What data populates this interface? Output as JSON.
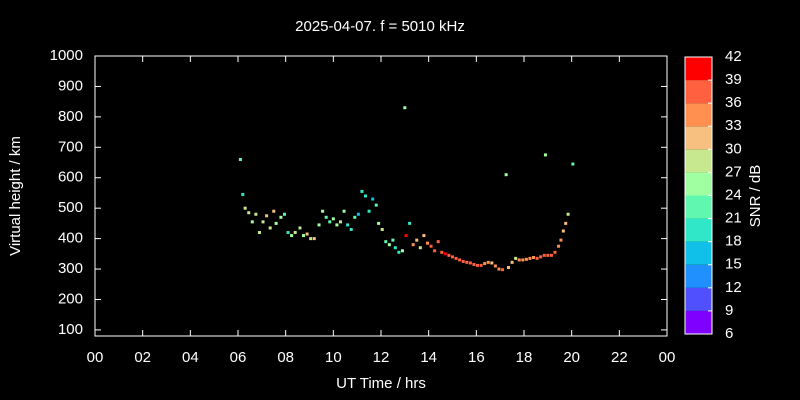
{
  "chart_data": {
    "type": "scatter",
    "title": "2025-04-07. f = 5010 kHz",
    "x_label": "UT Time / hrs",
    "y_label": "Virtual height / km",
    "xlim": [
      0,
      24
    ],
    "xticks": [
      {
        "value": 0,
        "label": "00"
      },
      {
        "value": 2,
        "label": "02"
      },
      {
        "value": 4,
        "label": "04"
      },
      {
        "value": 6,
        "label": "06"
      },
      {
        "value": 8,
        "label": "08"
      },
      10,
      12,
      14,
      16,
      18,
      20,
      22,
      {
        "value": 24,
        "label": "00"
      }
    ],
    "ylim": [
      80,
      1000
    ],
    "yticks": [
      100,
      200,
      300,
      400,
      500,
      600,
      700,
      800,
      900,
      1000
    ],
    "colorbar": {
      "label": "SNR / dB",
      "lim": [
        6,
        42
      ],
      "ticks": [
        6,
        9,
        12,
        15,
        18,
        21,
        24,
        27,
        30,
        33,
        36,
        39,
        42
      ],
      "colors": [
        "#8000ff",
        "#5050ff",
        "#2090ff",
        "#10c0e8",
        "#30e8c8",
        "#60f8b0",
        "#a0ffa0",
        "#c8e890",
        "#f8c080",
        "#ff9050",
        "#ff6040",
        "#ff0000"
      ]
    },
    "series": [
      {
        "x": [
          6.1,
          6.2,
          6.3,
          6.45,
          6.6,
          6.75,
          6.9,
          7.05,
          7.2,
          7.35,
          7.5,
          7.6,
          7.8,
          7.95,
          8.1,
          8.25,
          8.4,
          8.6,
          8.75,
          8.9,
          9.05,
          9.2,
          9.4,
          9.55,
          9.7,
          9.85,
          10.0,
          10.15,
          10.3,
          10.45,
          10.6,
          10.75,
          10.9,
          11.05,
          11.2,
          11.35,
          11.5,
          11.65,
          11.8,
          11.9,
          12.05,
          12.2,
          12.35,
          12.5,
          12.6,
          12.75,
          12.9,
          13.0,
          13.05,
          13.2,
          13.35,
          13.5,
          13.65,
          13.8,
          13.95,
          14.1,
          14.25,
          14.4,
          14.55,
          14.7,
          14.85,
          15.0,
          15.15,
          15.3,
          15.45,
          15.6,
          15.75,
          15.9,
          16.05,
          16.2,
          16.35,
          16.5,
          16.65,
          16.8,
          16.95,
          17.1,
          17.25,
          17.35,
          17.5,
          17.65,
          17.8,
          17.95,
          18.1,
          18.25,
          18.4,
          18.55,
          18.7,
          18.85,
          18.9,
          19.0,
          19.15,
          19.3,
          19.45,
          19.55,
          19.65,
          19.75,
          19.85,
          20.05
        ],
        "y": [
          660,
          545,
          500,
          485,
          455,
          480,
          420,
          455,
          475,
          435,
          490,
          450,
          470,
          480,
          420,
          410,
          420,
          435,
          410,
          415,
          400,
          400,
          445,
          490,
          470,
          455,
          465,
          445,
          455,
          490,
          445,
          430,
          470,
          480,
          555,
          540,
          490,
          530,
          510,
          450,
          430,
          390,
          380,
          395,
          370,
          355,
          360,
          830,
          410,
          450,
          380,
          395,
          370,
          410,
          385,
          375,
          360,
          390,
          355,
          350,
          345,
          340,
          335,
          330,
          325,
          322,
          320,
          315,
          312,
          312,
          318,
          322,
          320,
          310,
          300,
          298,
          610,
          305,
          322,
          335,
          330,
          330,
          332,
          335,
          338,
          335,
          340,
          345,
          675,
          345,
          345,
          355,
          375,
          395,
          425,
          450,
          480,
          645
        ],
        "snr": [
          21,
          20,
          27,
          27,
          25,
          29,
          27,
          28,
          30,
          27,
          31,
          26,
          25,
          22,
          18,
          26,
          29,
          27,
          25,
          30,
          29,
          31,
          24,
          24,
          22,
          21,
          25,
          26,
          27,
          26,
          20,
          18,
          23,
          17,
          18,
          20,
          20,
          17,
          22,
          26,
          27,
          22,
          25,
          21,
          20,
          20,
          25,
          24,
          39,
          19,
          33,
          31,
          29,
          30,
          34,
          36,
          36,
          37,
          38,
          39,
          38,
          37,
          37,
          36,
          36,
          36,
          36,
          37,
          36,
          36,
          35,
          34,
          32,
          33,
          35,
          36,
          26,
          32,
          30,
          29,
          33,
          34,
          33,
          33,
          33,
          36,
          37,
          37,
          24,
          38,
          36,
          36,
          34,
          33,
          31,
          30,
          29,
          22
        ]
      }
    ]
  }
}
